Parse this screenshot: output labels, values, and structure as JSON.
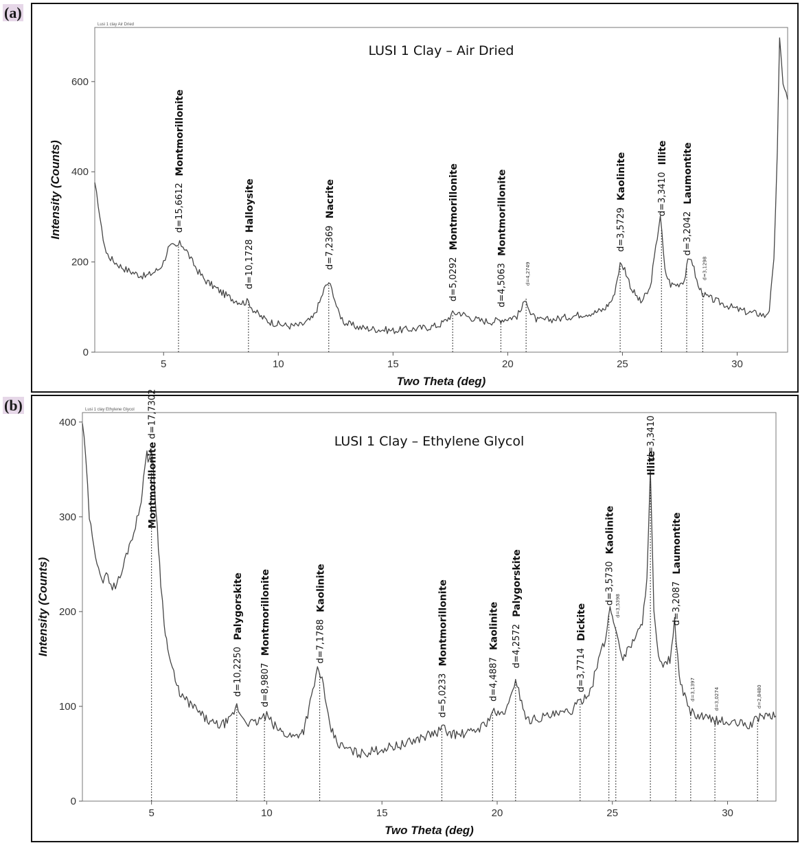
{
  "panels": [
    {
      "tag": "(a)"
    },
    {
      "tag": "(b)"
    }
  ],
  "chart_data": [
    {
      "type": "line",
      "title": "LUSI 1 Clay – Air Dried",
      "caption": "Lusi 1 clay Air Dried",
      "xlabel": "Two Theta (deg)",
      "ylabel": "Intensity (Counts)",
      "xlim": [
        2,
        32.2
      ],
      "ylim": [
        0,
        720
      ],
      "xticks": [
        5,
        10,
        15,
        20,
        25,
        30
      ],
      "yticks": [
        0,
        200,
        400,
        600
      ],
      "grid": false,
      "series": [
        {
          "x": [
            2.0,
            2.15,
            2.3,
            2.5,
            2.75,
            3.0,
            3.3,
            3.6,
            3.9,
            4.2,
            4.5,
            4.8,
            5.0,
            5.2,
            5.4,
            5.55,
            5.7,
            5.85,
            6.0,
            6.2,
            6.5,
            6.8,
            7.2,
            7.6,
            8.0,
            8.4,
            8.7,
            8.9,
            9.2,
            9.6,
            10.0,
            10.5,
            11.0,
            11.5,
            11.8,
            12.0,
            12.2,
            12.4,
            12.6,
            12.9,
            13.5,
            14.0,
            14.5,
            15.0,
            15.5,
            16.0,
            16.5,
            17.0,
            17.3,
            17.6,
            17.9,
            18.3,
            18.8,
            19.3,
            19.7,
            20.0,
            20.4,
            20.6,
            20.8,
            21.0,
            21.3,
            21.8,
            22.3,
            22.8,
            23.3,
            23.8,
            24.2,
            24.6,
            24.9,
            25.1,
            25.4,
            25.8,
            26.2,
            26.45,
            26.65,
            26.85,
            27.1,
            27.4,
            27.7,
            27.85,
            28.0,
            28.3,
            28.6,
            29.0,
            29.5,
            30.0,
            30.5,
            31.0,
            31.2,
            31.4,
            31.6,
            31.75,
            31.85,
            32.0,
            32.2
          ],
          "y": [
            370,
            330,
            270,
            220,
            205,
            195,
            185,
            178,
            172,
            168,
            175,
            185,
            200,
            230,
            235,
            232,
            240,
            236,
            225,
            205,
            180,
            160,
            145,
            130,
            118,
            110,
            112,
            95,
            80,
            68,
            62,
            58,
            60,
            75,
            110,
            140,
            155,
            130,
            90,
            65,
            55,
            52,
            50,
            48,
            50,
            52,
            55,
            60,
            70,
            85,
            88,
            78,
            70,
            68,
            72,
            75,
            80,
            95,
            120,
            85,
            70,
            72,
            75,
            80,
            85,
            88,
            95,
            120,
            195,
            185,
            140,
            110,
            140,
            230,
            305,
            180,
            150,
            150,
            160,
            200,
            210,
            145,
            125,
            115,
            105,
            95,
            88,
            85,
            80,
            95,
            200,
            450,
            690,
            600,
            560
          ]
        }
      ],
      "annotations": [
        {
          "x": 5.65,
          "mineral": "Montmorillonite",
          "d": "d=15,6612"
        },
        {
          "x": 8.7,
          "mineral": "Halloysite",
          "d": "d=10,1728"
        },
        {
          "x": 12.2,
          "mineral": "Nacrite",
          "d": "d=7,2369"
        },
        {
          "x": 17.6,
          "mineral": "Montmorillonite",
          "d": "d=5,0292"
        },
        {
          "x": 19.7,
          "mineral": "Montmorillonite",
          "d": "d=4,5063"
        },
        {
          "x": 20.8,
          "mineral": "",
          "d": "d=4,2749"
        },
        {
          "x": 24.9,
          "mineral": "Kaolinite",
          "d": "d=3,5729"
        },
        {
          "x": 26.7,
          "mineral": "Illite",
          "d": "d=3,3410"
        },
        {
          "x": 27.8,
          "mineral": "Laumontite",
          "d": "d=3,2042"
        },
        {
          "x": 28.5,
          "mineral": "",
          "d": "d=3,1298"
        }
      ]
    },
    {
      "type": "line",
      "title": "LUSI 1 Clay – Ethylene Glycol",
      "caption": "Lusi 1 clay Ethylene Glycol",
      "xlabel": "Two Theta (deg)",
      "ylabel": "Intensity (Counts)",
      "xlim": [
        2,
        32.1
      ],
      "ylim": [
        0,
        410
      ],
      "xticks": [
        5,
        10,
        15,
        20,
        25,
        30
      ],
      "yticks": [
        0,
        100,
        200,
        300,
        400
      ],
      "grid": false,
      "series": [
        {
          "x": [
            2.0,
            2.15,
            2.3,
            2.5,
            2.7,
            2.9,
            3.1,
            3.3,
            3.5,
            3.7,
            3.9,
            4.1,
            4.3,
            4.5,
            4.65,
            4.8,
            4.9,
            5.0,
            5.1,
            5.25,
            5.4,
            5.55,
            5.7,
            5.9,
            6.1,
            6.4,
            6.8,
            7.2,
            7.6,
            8.0,
            8.4,
            8.7,
            8.9,
            9.2,
            9.5,
            9.8,
            10.0,
            10.3,
            10.7,
            11.2,
            11.6,
            12.0,
            12.2,
            12.4,
            12.6,
            12.8,
            13.1,
            13.5,
            14.0,
            14.5,
            15.0,
            15.5,
            16.0,
            16.5,
            17.0,
            17.4,
            17.6,
            17.9,
            18.3,
            18.8,
            19.3,
            19.6,
            19.8,
            20.1,
            20.5,
            20.8,
            21.0,
            21.3,
            21.8,
            22.3,
            22.8,
            23.2,
            23.5,
            23.8,
            24.1,
            24.4,
            24.7,
            24.9,
            25.05,
            25.2,
            25.4,
            25.7,
            26.0,
            26.3,
            26.5,
            26.65,
            26.8,
            27.0,
            27.2,
            27.5,
            27.7,
            27.9,
            28.2,
            28.4,
            28.6,
            29.0,
            29.4,
            29.7,
            30.0,
            30.5,
            31.0,
            31.4,
            31.7,
            32.1
          ],
          "y": [
            400,
            360,
            300,
            265,
            250,
            230,
            240,
            225,
            230,
            240,
            260,
            275,
            290,
            310,
            340,
            365,
            360,
            372,
            340,
            290,
            230,
            190,
            160,
            140,
            120,
            108,
            100,
            90,
            82,
            80,
            85,
            100,
            90,
            83,
            82,
            88,
            90,
            80,
            72,
            68,
            75,
            115,
            140,
            130,
            95,
            75,
            60,
            55,
            50,
            52,
            55,
            58,
            60,
            65,
            70,
            72,
            78,
            72,
            70,
            72,
            78,
            85,
            95,
            90,
            100,
            130,
            110,
            85,
            88,
            90,
            92,
            95,
            102,
            110,
            120,
            150,
            170,
            205,
            190,
            180,
            150,
            160,
            175,
            185,
            240,
            350,
            200,
            150,
            140,
            150,
            190,
            130,
            105,
            95,
            90,
            88,
            85,
            85,
            82,
            82,
            80,
            90,
            90,
            90
          ]
        }
      ],
      "annotations": [
        {
          "x": 5.0,
          "mineral": "Montmorillonite",
          "d": "d=17,7302"
        },
        {
          "x": 8.7,
          "mineral": "Palygorskite",
          "d": "d=10,2250"
        },
        {
          "x": 9.9,
          "mineral": "Montmorillonite",
          "d": "d=8,9807"
        },
        {
          "x": 12.3,
          "mineral": "Kaolinite",
          "d": "d=7,1788"
        },
        {
          "x": 17.6,
          "mineral": "Montmorillonite",
          "d": "d=5,0233"
        },
        {
          "x": 19.8,
          "mineral": "Kaolinite",
          "d": "d=4,4887"
        },
        {
          "x": 20.8,
          "mineral": "Palygorskite",
          "d": "d=4,2572"
        },
        {
          "x": 23.6,
          "mineral": "Dickite",
          "d": "d=3,7714"
        },
        {
          "x": 24.85,
          "mineral": "Kaolinite",
          "d": "d=3,5730"
        },
        {
          "x": 25.15,
          "mineral": "",
          "d": "d=3,5398"
        },
        {
          "x": 26.65,
          "mineral": "Illite",
          "d": "d=3,3410"
        },
        {
          "x": 27.75,
          "mineral": "Laumontite",
          "d": "d=3,2087"
        },
        {
          "x": 28.4,
          "mineral": "",
          "d": "d=3,1397"
        },
        {
          "x": 29.45,
          "mineral": "",
          "d": "d=3,0274"
        },
        {
          "x": 31.3,
          "mineral": "",
          "d": "d=2,8480"
        }
      ]
    }
  ]
}
